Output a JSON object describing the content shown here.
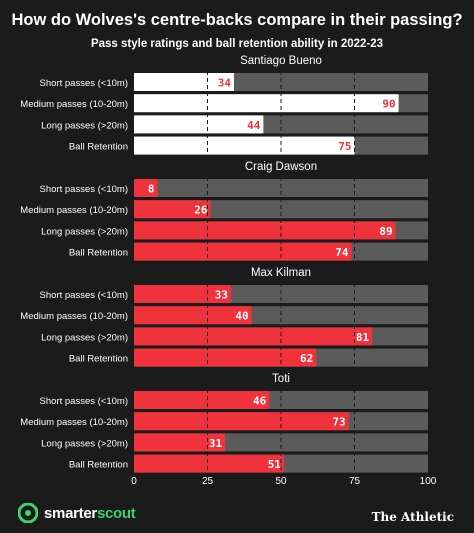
{
  "title": "How do Wolves's centre-backs compare in their passing?",
  "subtitle": "Pass style ratings and ball retention ability in 2022-23",
  "brand": {
    "part1": "smarter",
    "part2": "scout",
    "publisher": "The Athletic"
  },
  "colors": {
    "background": "#1b1b1b",
    "track": "#5b5b5b",
    "white_bar": "#ffffff",
    "red_bar": "#f0323c",
    "label_red": "#f0323c"
  },
  "chart_data": {
    "type": "bar",
    "orientation": "horizontal",
    "xlim": [
      0,
      100
    ],
    "xticks": [
      0,
      25,
      50,
      75,
      100
    ],
    "reference_lines": [
      25,
      50,
      75
    ],
    "categories": [
      "Short passes (<10m)",
      "Medium passes (10-20m)",
      "Long passes (>20m)",
      "Ball Retention"
    ],
    "panels": [
      {
        "player": "Santiago Bueno",
        "bar_color": "white",
        "values": [
          34,
          90,
          44,
          75
        ]
      },
      {
        "player": "Craig Dawson",
        "bar_color": "red",
        "values": [
          8,
          26,
          89,
          74
        ]
      },
      {
        "player": "Max Kilman",
        "bar_color": "red",
        "values": [
          33,
          40,
          81,
          62
        ]
      },
      {
        "player": "Toti",
        "bar_color": "red",
        "values": [
          46,
          73,
          31,
          51
        ]
      }
    ]
  }
}
